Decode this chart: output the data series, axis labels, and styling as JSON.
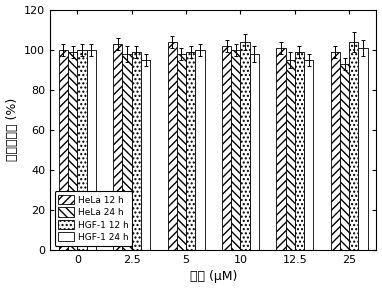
{
  "categories": [
    "0",
    "2.5",
    "5",
    "10",
    "12.5",
    "25"
  ],
  "xlabel": "浓度 (μM)",
  "ylabel": "细胞存活率 (%)",
  "ylim": [
    0,
    120
  ],
  "yticks": [
    0,
    20,
    40,
    60,
    80,
    100,
    120
  ],
  "series_names": [
    "HeLa 12 h",
    "HeLa 24 h",
    "HGF-1 12 h",
    "HGF-1 24 h"
  ],
  "values": [
    [
      100,
      103,
      104,
      102,
      101,
      99
    ],
    [
      99,
      98,
      98,
      100,
      95,
      93
    ],
    [
      100,
      99,
      99,
      104,
      99,
      104
    ],
    [
      100,
      95,
      100,
      98,
      95,
      101
    ]
  ],
  "errors": [
    [
      3,
      3,
      3,
      3,
      3,
      3
    ],
    [
      3,
      4,
      3,
      3,
      4,
      3
    ],
    [
      3,
      3,
      3,
      4,
      3,
      5
    ],
    [
      3,
      3,
      3,
      4,
      3,
      4
    ]
  ],
  "hatches": [
    "////",
    "\\\\\\\\",
    "....",
    "===="
  ],
  "facecolors": [
    "white",
    "white",
    "white",
    "white"
  ],
  "bar_width": 0.17,
  "background_color": "white",
  "legend_fontsize": 6.5,
  "tick_fontsize": 8,
  "label_fontsize": 9
}
